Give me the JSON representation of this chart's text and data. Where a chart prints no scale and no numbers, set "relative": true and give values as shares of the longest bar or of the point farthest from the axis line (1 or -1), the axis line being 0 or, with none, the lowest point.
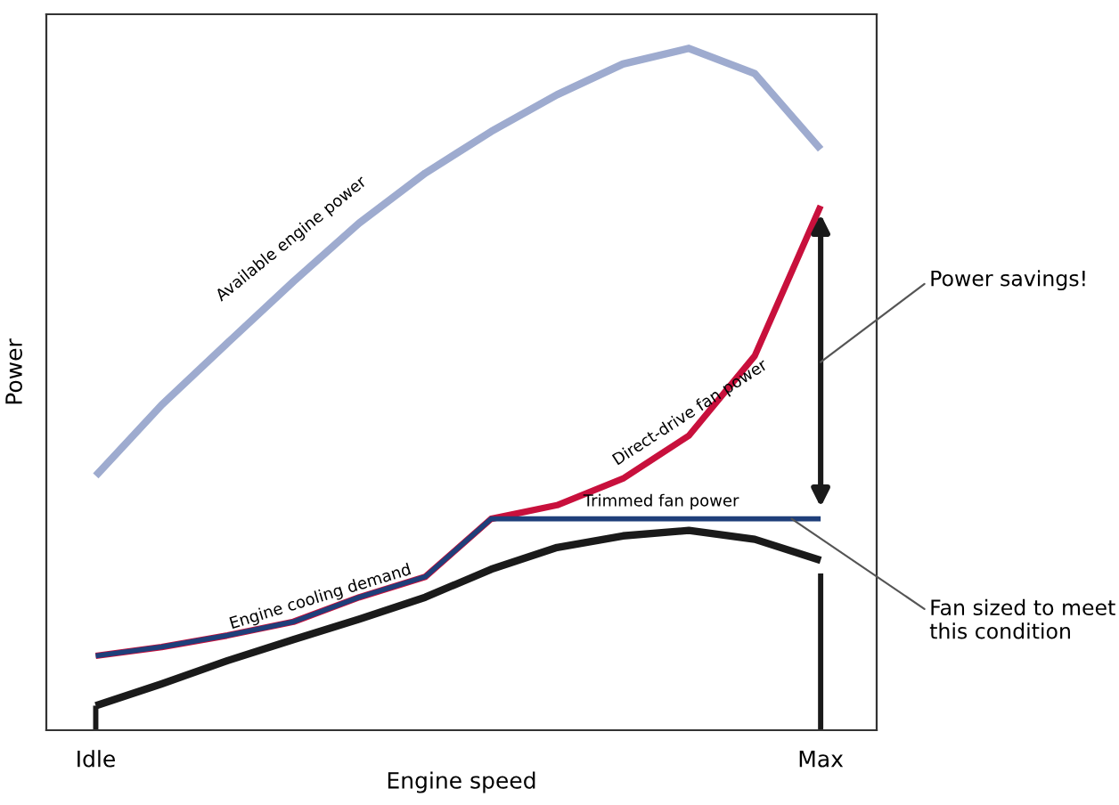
{
  "chart_data": {
    "type": "line",
    "relative": true,
    "xlabel": "Engine speed",
    "ylabel": "Power",
    "categories": [
      "Idle",
      null,
      null,
      null,
      null,
      null,
      null,
      null,
      null,
      null,
      null,
      "Max"
    ],
    "grid": false,
    "legend": false,
    "marker": "none",
    "line_style": "solid",
    "series": [
      {
        "color": "#9eabcf",
        "values": [
          0.373,
          0.477,
          0.568,
          0.658,
          0.744,
          0.817,
          0.878,
          0.932,
          0.977,
          1.0,
          0.963,
          0.852
        ]
      },
      {
        "color": "#c8103c",
        "values": [
          0.109,
          0.122,
          0.139,
          0.159,
          0.195,
          0.225,
          0.31,
          0.33,
          0.369,
          0.432,
          0.549,
          0.769
        ]
      },
      {
        "color": "#1f3f7a",
        "values": [
          0.109,
          0.122,
          0.139,
          0.159,
          0.195,
          0.225,
          0.31,
          0.31,
          0.31,
          0.31,
          0.31,
          0.31
        ]
      },
      {
        "color": "#1a1a1a",
        "values": [
          0.036,
          0.068,
          0.102,
          0.133,
          0.163,
          0.195,
          0.236,
          0.268,
          0.285,
          0.293,
          0.28,
          0.249
        ]
      },
      {
        "type": "bar",
        "color": "#1a1a1a",
        "values": [
          0.036,
          null,
          null,
          null,
          null,
          null,
          null,
          null,
          null,
          null,
          null,
          0.23
        ]
      }
    ],
    "annotations": [
      "Available engine power",
      "Direct-drive fan power",
      "Trimmed fan power",
      "Engine cooling demand",
      "Power savings!",
      "Fan sized to meet\nthis condition"
    ]
  }
}
